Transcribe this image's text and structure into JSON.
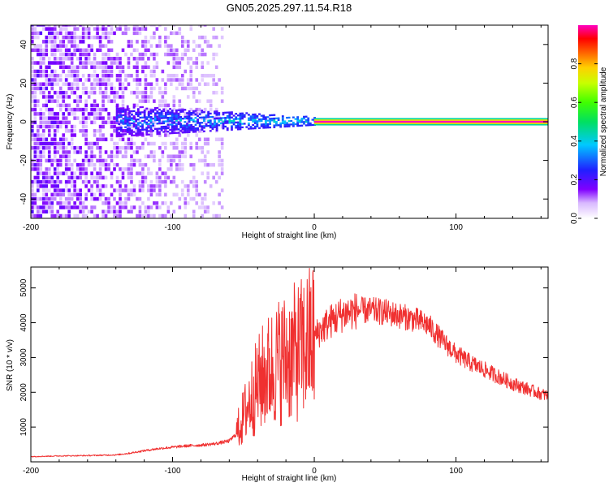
{
  "title": "GN05.2025.297.11.54.R18",
  "chart_data": [
    {
      "type": "heatmap",
      "name": "spectrogram",
      "xlabel": "Height of straight line (km)",
      "ylabel": "Frequency (Hz)",
      "xlim": [
        -200,
        165
      ],
      "ylim": [
        -50,
        50
      ],
      "xticks": [
        -200,
        -100,
        0,
        100
      ],
      "yticks": [
        -40,
        -20,
        0,
        20,
        40
      ],
      "colorbar": {
        "label": "Normalized spectral amplitude",
        "range": [
          0,
          1
        ],
        "ticks": [
          "0.0",
          "0.2",
          "0.4",
          "0.6",
          "0.8"
        ],
        "tick_values": [
          0.0,
          0.2,
          0.4,
          0.6,
          0.8
        ]
      },
      "features": [
        {
          "description": "broadband noise",
          "x_range": [
            -200,
            -65
          ],
          "y_range": [
            -50,
            50
          ],
          "amplitude": [
            0.05,
            0.15
          ]
        },
        {
          "description": "central band widening toward lower heights",
          "x_range": [
            -140,
            0
          ],
          "y_center": 0,
          "half_width_hz": [
            8,
            2
          ],
          "amplitude": [
            0.15,
            0.5
          ]
        },
        {
          "description": "narrow carrier line",
          "x_range": [
            0,
            165
          ],
          "y_center": 0,
          "half_width_hz": 1.2,
          "amplitude": 1.0
        }
      ]
    },
    {
      "type": "line",
      "name": "snr",
      "xlabel": "Height of straight line (km)",
      "ylabel": "SNR (10 * v/v)",
      "xlim": [
        -200,
        165
      ],
      "ylim": [
        0,
        5600
      ],
      "xticks": [
        -200,
        -100,
        0,
        100
      ],
      "yticks": [
        1000,
        2000,
        3000,
        4000,
        5000
      ],
      "color": "#f03030",
      "series": [
        {
          "name": "SNR",
          "x": [
            -200,
            -180,
            -160,
            -140,
            -130,
            -120,
            -110,
            -100,
            -90,
            -80,
            -70,
            -60,
            -55,
            -50,
            -45,
            -40,
            -35,
            -30,
            -25,
            -20,
            -15,
            -10,
            -5,
            0,
            10,
            20,
            30,
            40,
            50,
            60,
            70,
            80,
            90,
            100,
            110,
            120,
            130,
            140,
            150,
            160,
            165
          ],
          "y": [
            150,
            170,
            180,
            200,
            250,
            320,
            380,
            420,
            460,
            480,
            520,
            600,
            800,
            1300,
            1800,
            2200,
            2500,
            2700,
            2900,
            3000,
            3100,
            3200,
            3400,
            3600,
            4000,
            4250,
            4350,
            4350,
            4300,
            4200,
            4100,
            3950,
            3500,
            3100,
            2850,
            2650,
            2450,
            2250,
            2100,
            1950,
            1900
          ]
        }
      ]
    }
  ]
}
